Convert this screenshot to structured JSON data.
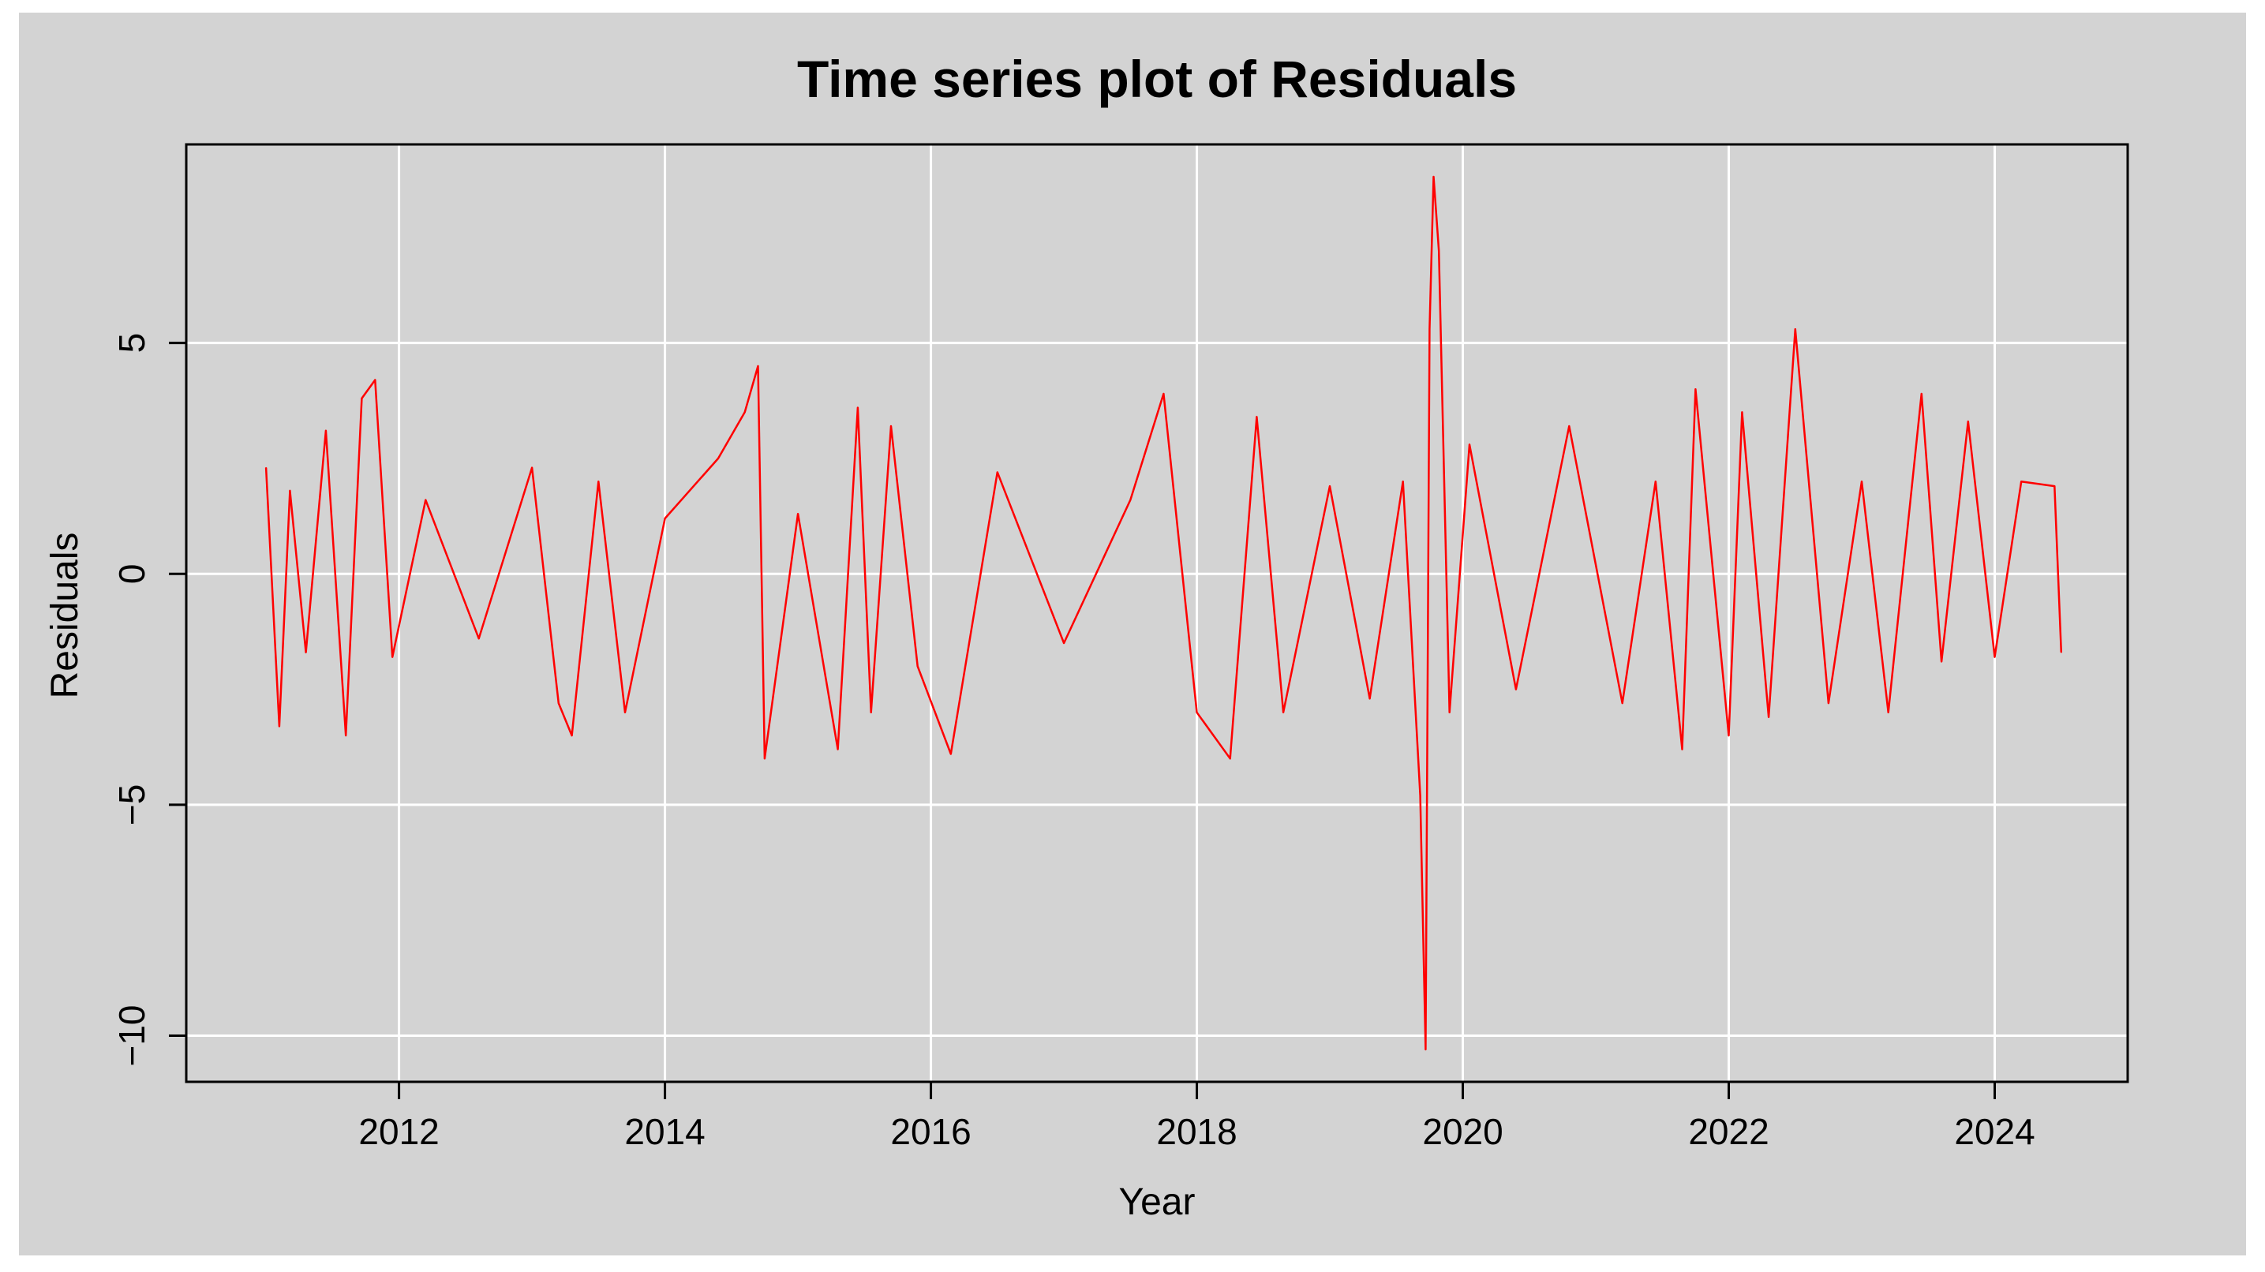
{
  "chart_data": {
    "type": "line",
    "title": "Time series plot of Residuals",
    "xlabel": "Year",
    "ylabel": "Residuals",
    "xlim": [
      2010.4,
      2025.0
    ],
    "ylim": [
      -11.0,
      9.3
    ],
    "x_ticks": [
      2012,
      2014,
      2016,
      2018,
      2020,
      2022,
      2024
    ],
    "x_tick_labels": [
      "2012",
      "2014",
      "2016",
      "2018",
      "2020",
      "2022",
      "2024"
    ],
    "y_ticks": [
      -10,
      -5,
      0,
      5
    ],
    "y_tick_labels": [
      "−10",
      "−5",
      "0",
      "5"
    ],
    "grid": true,
    "legend": "none",
    "series": [
      {
        "x": [
          2011.0,
          2011.1,
          2011.18,
          2011.3,
          2011.45,
          2011.6,
          2011.72,
          2011.82,
          2011.95,
          2012.2,
          2012.6,
          2013.0,
          2013.2,
          2013.3,
          2013.5,
          2013.7,
          2014.0,
          2014.4,
          2014.6,
          2014.7,
          2014.75,
          2015.0,
          2015.3,
          2015.45,
          2015.55,
          2015.7,
          2015.9,
          2016.15,
          2016.5,
          2017.0,
          2017.5,
          2017.75,
          2018.0,
          2018.25,
          2018.45,
          2018.65,
          2019.0,
          2019.3,
          2019.55,
          2019.68,
          2019.72,
          2019.75,
          2019.78,
          2019.82,
          2019.9,
          2020.05,
          2020.4,
          2020.8,
          2021.2,
          2021.45,
          2021.65,
          2021.75,
          2022.0,
          2022.1,
          2022.3,
          2022.5,
          2022.75,
          2023.0,
          2023.2,
          2023.45,
          2023.6,
          2023.8,
          2024.0,
          2024.2,
          2024.45,
          2024.5
        ],
        "y": [
          2.3,
          -3.3,
          1.8,
          -1.7,
          3.1,
          -3.5,
          3.8,
          4.2,
          -1.8,
          1.6,
          -1.4,
          2.3,
          -2.8,
          -3.5,
          2.0,
          -3.0,
          1.2,
          2.5,
          3.5,
          4.5,
          -4.0,
          1.3,
          -3.8,
          3.6,
          -3.0,
          3.2,
          -2.0,
          -3.9,
          2.2,
          -1.5,
          1.6,
          3.9,
          -3.0,
          -4.0,
          3.4,
          -3.0,
          1.9,
          -2.7,
          2.0,
          -4.8,
          -10.3,
          5.3,
          8.6,
          7.0,
          -3.0,
          2.8,
          -2.5,
          3.2,
          -2.8,
          2.0,
          -3.8,
          4.0,
          -3.5,
          3.5,
          -3.1,
          5.3,
          -2.8,
          2.0,
          -3.0,
          3.9,
          -1.9,
          3.3,
          -1.8,
          2.0,
          1.9,
          -1.7
        ],
        "color": "#ff0000"
      }
    ]
  },
  "colors": {
    "panel_background": "#d3d3d3",
    "grid": "#ffffff",
    "series": "#ff0000",
    "frame": "#000000"
  }
}
